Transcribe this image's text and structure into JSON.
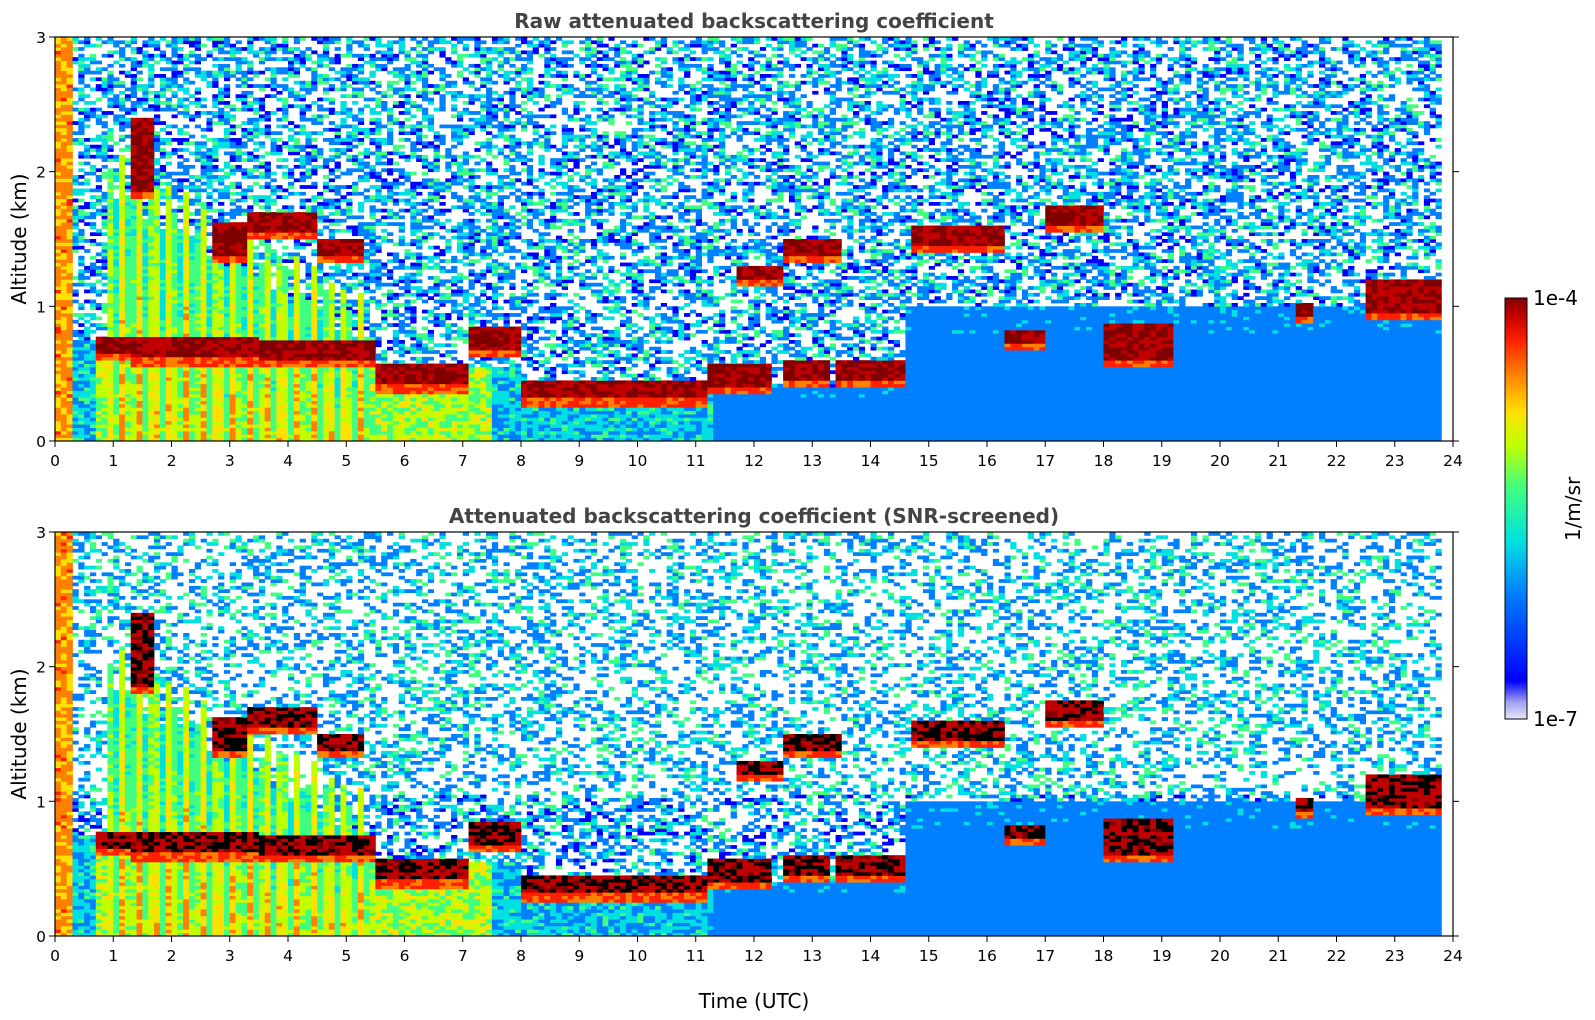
{
  "chart_data": [
    {
      "type": "heatmap",
      "title": "Raw attenuated backscattering coefficient",
      "xlabel": "",
      "ylabel": "Altitude (km)",
      "xlim": [
        0,
        24
      ],
      "ylim": [
        0,
        3
      ],
      "xticks": [
        "0",
        "1",
        "2",
        "3",
        "4",
        "5",
        "6",
        "7",
        "8",
        "9",
        "10",
        "11",
        "12",
        "13",
        "14",
        "15",
        "16",
        "17",
        "18",
        "19",
        "20",
        "21",
        "22",
        "23",
        "24"
      ],
      "yticks": [
        "0",
        "1",
        "2",
        "3"
      ],
      "scale": "log",
      "screened": false,
      "cloud_layers": [
        {
          "start": 0.7,
          "end": 1.3,
          "base": 0.65,
          "top": 0.78
        },
        {
          "start": 1.3,
          "end": 3.5,
          "base": 0.62,
          "top": 0.78
        },
        {
          "start": 3.5,
          "end": 5.5,
          "base": 0.6,
          "top": 0.74
        },
        {
          "start": 5.5,
          "end": 7.1,
          "base": 0.42,
          "top": 0.58
        },
        {
          "start": 7.1,
          "end": 8.0,
          "base": 0.68,
          "top": 0.84
        },
        {
          "start": 8.0,
          "end": 11.2,
          "base": 0.32,
          "top": 0.46
        },
        {
          "start": 11.2,
          "end": 12.3,
          "base": 0.4,
          "top": 0.58
        },
        {
          "start": 12.5,
          "end": 13.3,
          "base": 0.46,
          "top": 0.6
        },
        {
          "start": 13.4,
          "end": 14.6,
          "base": 0.45,
          "top": 0.6
        },
        {
          "start": 14.7,
          "end": 16.3,
          "base": 1.45,
          "top": 1.6
        },
        {
          "start": 16.3,
          "end": 17.0,
          "base": 0.73,
          "top": 0.83
        },
        {
          "start": 17.0,
          "end": 18.0,
          "base": 1.6,
          "top": 1.75
        },
        {
          "start": 18.0,
          "end": 19.2,
          "base": 0.6,
          "top": 0.88
        },
        {
          "start": 21.3,
          "end": 21.6,
          "base": 0.93,
          "top": 1.02
        },
        {
          "start": 22.5,
          "end": 23.8,
          "base": 0.95,
          "top": 1.2
        },
        {
          "start": 2.7,
          "end": 3.3,
          "base": 1.38,
          "top": 1.62
        },
        {
          "start": 3.3,
          "end": 4.5,
          "base": 1.55,
          "top": 1.7
        },
        {
          "start": 4.5,
          "end": 5.3,
          "base": 1.38,
          "top": 1.5
        },
        {
          "start": 1.3,
          "end": 1.7,
          "base": 1.85,
          "top": 2.4
        },
        {
          "start": 11.7,
          "end": 12.5,
          "base": 1.2,
          "top": 1.3
        },
        {
          "start": 12.5,
          "end": 13.5,
          "base": 1.38,
          "top": 1.5
        }
      ]
    },
    {
      "type": "heatmap",
      "title": "Attenuated backscattering coefficient (SNR-screened)",
      "xlabel": "Time (UTC)",
      "ylabel": "Altitude (km)",
      "xlim": [
        0,
        24
      ],
      "ylim": [
        0,
        3
      ],
      "xticks": [
        "0",
        "1",
        "2",
        "3",
        "4",
        "5",
        "6",
        "7",
        "8",
        "9",
        "10",
        "11",
        "12",
        "13",
        "14",
        "15",
        "16",
        "17",
        "18",
        "19",
        "20",
        "21",
        "22",
        "23",
        "24"
      ],
      "yticks": [
        "0",
        "1",
        "2",
        "3"
      ],
      "scale": "log",
      "screened": true
    }
  ],
  "colorbar": {
    "label": "1/m/sr",
    "max_label": "1e-4",
    "min_label": "1e-7",
    "colormap": "jet",
    "colors": [
      "#e8e8f8",
      "#0000ff",
      "#0080ff",
      "#00e0e0",
      "#40ff80",
      "#c0ff00",
      "#ffe000",
      "#ff8000",
      "#ff2000",
      "#c00000",
      "#800000"
    ]
  }
}
